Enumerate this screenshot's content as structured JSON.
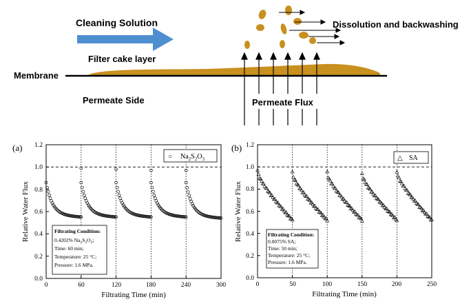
{
  "schematic": {
    "cleaning_solution": "Cleaning Solution",
    "filter_cake_layer": "Filter cake layer",
    "membrane": "Membrane",
    "permeate_side": "Permeate Side",
    "permeate_flux": "Permeate Flux",
    "dissolution": "Dissolution and backwashing",
    "arrow_color": "#4f8fd0",
    "cake_color": "#c8901e"
  },
  "chart_data": [
    {
      "type": "scatter",
      "panel_label": "(a)",
      "legend_marker": "○",
      "legend_name": "Na",
      "legend_sub1": "2",
      "legend_mid": "S",
      "legend_sub2": "2",
      "legend_end": "O",
      "legend_sub3": "3",
      "xlabel": "Filtrating Time (min)",
      "ylabel": "Relative Water Flux",
      "xlim": [
        0,
        300
      ],
      "ylim": [
        0,
        1.2
      ],
      "xticks": [
        "0",
        "60",
        "120",
        "180",
        "240",
        "300"
      ],
      "yticks": [
        "0.0",
        "0.2",
        "0.4",
        "0.6",
        "0.8",
        "1.0",
        "1.2"
      ],
      "reference_line": 1.0,
      "cleaning_times": [
        60,
        120,
        180,
        240
      ],
      "cycle_length": 60,
      "cycles": [
        {
          "start": 0,
          "y0": 0.84,
          "y_end": 0.55
        },
        {
          "start": 60,
          "y0": 0.84,
          "y_end": 0.55
        },
        {
          "start": 120,
          "y0": 0.84,
          "y_end": 0.55
        },
        {
          "start": 180,
          "y0": 0.84,
          "y_end": 0.55
        },
        {
          "start": 240,
          "y0": 0.84,
          "y_end": 0.54
        }
      ],
      "restored_points": [
        {
          "x": 60,
          "y": 0.99
        },
        {
          "x": 120,
          "y": 0.98
        },
        {
          "x": 180,
          "y": 0.97
        },
        {
          "x": 240,
          "y": 0.97
        }
      ],
      "condition_title": "Filtrating Condition:",
      "conditions": {
        "c1_num": "0.4202% Na",
        "c1_s1": "2",
        "c1_mid": "S",
        "c1_s2": "2",
        "c1_end": "O",
        "c1_s3": "3",
        "c1_tail": ";",
        "time": "Time: 60 min;",
        "temperature": "Temperature: 25 °C;",
        "pressure": "Pressure: 1.6 MPa."
      }
    },
    {
      "type": "scatter",
      "panel_label": "(b)",
      "legend_marker": "△",
      "legend_name": "SA",
      "xlabel": "Filtrating Time (min)",
      "ylabel": "Relative Water Flux",
      "xlim": [
        0,
        250
      ],
      "ylim": [
        0,
        1.2
      ],
      "xticks": [
        "0",
        "50",
        "100",
        "150",
        "200",
        "250"
      ],
      "yticks": [
        "0.0",
        "0.2",
        "0.4",
        "0.6",
        "0.8",
        "1.0",
        "1.2"
      ],
      "reference_line": 1.0,
      "cleaning_times": [
        50,
        100,
        150,
        200
      ],
      "cycle_length": 50,
      "cycles": [
        {
          "start": 0,
          "y0": 0.97,
          "y_end": 0.52
        },
        {
          "start": 50,
          "y0": 0.95,
          "y_end": 0.52
        },
        {
          "start": 100,
          "y0": 0.95,
          "y_end": 0.52
        },
        {
          "start": 150,
          "y0": 0.94,
          "y_end": 0.52
        },
        {
          "start": 200,
          "y0": 0.96,
          "y_end": 0.52
        }
      ],
      "condition_title": "Filtrating Condition:",
      "conditions": {
        "c1": "0.0075% SA;",
        "time": "Time: 50 min;",
        "temperature": "Temperature: 25 °C;",
        "pressure": "Pressure: 1.6 MPa."
      }
    }
  ]
}
